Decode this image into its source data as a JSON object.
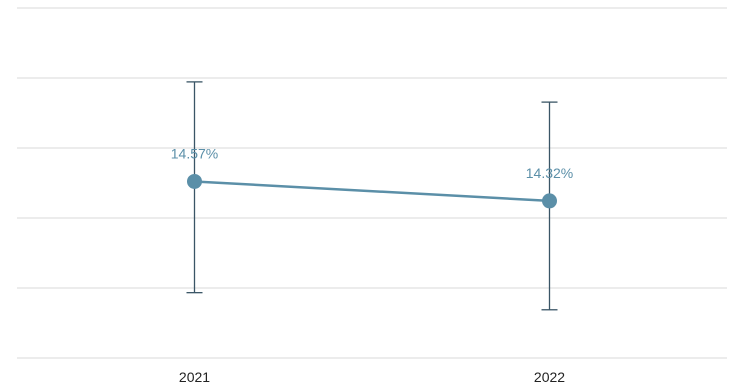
{
  "chart_data": {
    "type": "line",
    "categories": [
      "2021",
      "2022"
    ],
    "values": [
      14.57,
      14.32
    ],
    "data_labels": [
      "14.57%",
      "14.32%"
    ],
    "error_low": [
      13.14,
      12.92
    ],
    "error_high": [
      15.85,
      15.59
    ],
    "ylim": [
      12.3,
      16.8
    ],
    "grid": true,
    "title": "",
    "xlabel": "",
    "ylabel": "",
    "colors": {
      "series": "#5b8fa8",
      "error": "#3a5566",
      "grid": "#d9d9d9"
    }
  }
}
